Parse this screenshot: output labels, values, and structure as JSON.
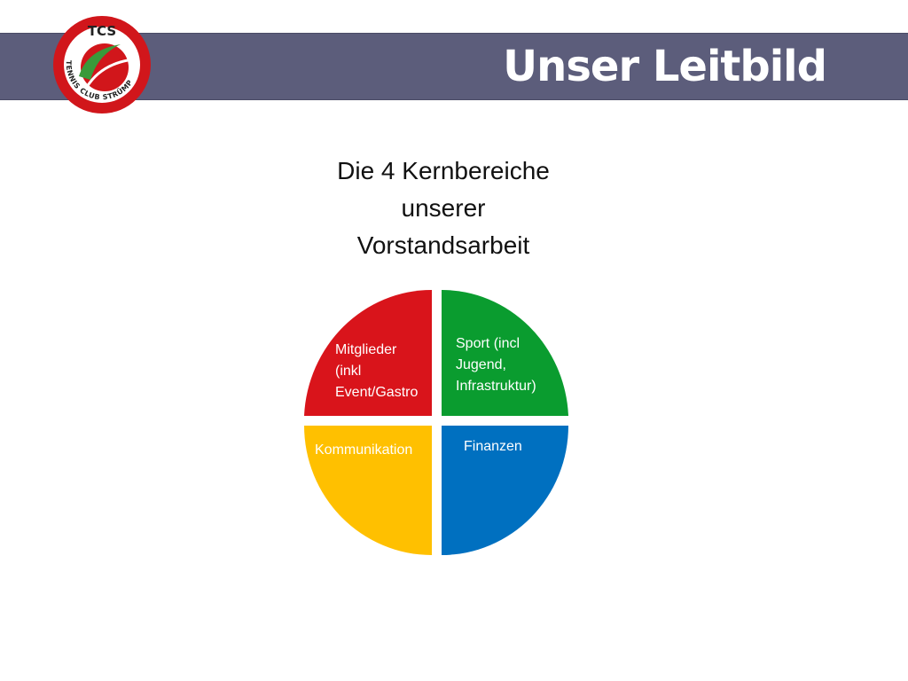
{
  "header": {
    "title": "Unser Leitbild",
    "banner_color": "#5c5d7b"
  },
  "logo": {
    "abbr": "TCS",
    "name": "TENNIS CLUB STRÜMP",
    "ring_color": "#d1161b",
    "ball_color": "#d1161b",
    "swoosh_color": "#3a9a3a"
  },
  "heading": {
    "lines": [
      "Die 4 Kernbereiche",
      "unserer",
      "Vorstandsarbeit"
    ]
  },
  "quadrants": [
    {
      "lines": [
        "Mitglieder",
        "(inkl",
        "Event/Gastro"
      ],
      "color": "#d9141b"
    },
    {
      "lines": [
        "Sport (incl",
        "Jugend,",
        "Infrastruktur)"
      ],
      "color": "#0a9c2f"
    },
    {
      "lines": [
        "Kommunikation"
      ],
      "color": "#ffc000"
    },
    {
      "lines": [
        "Finanzen"
      ],
      "color": "#0070c0"
    }
  ]
}
